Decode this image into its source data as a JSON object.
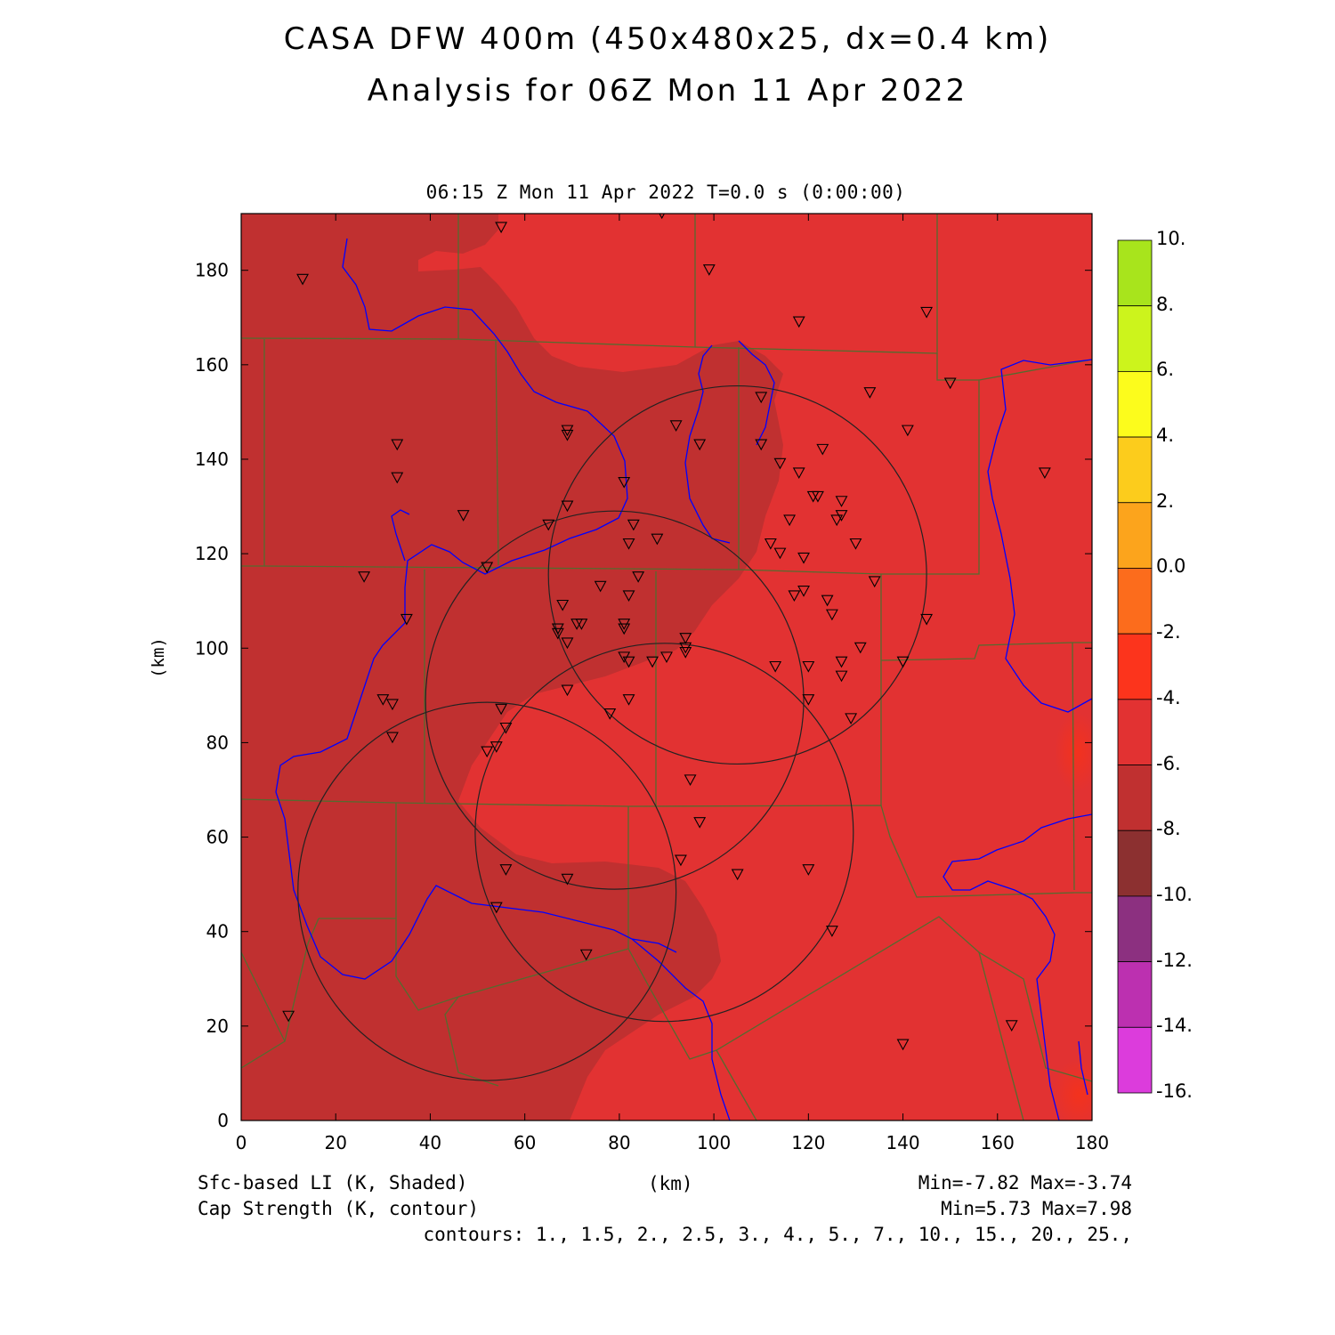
{
  "title": {
    "line1": "CASA DFW 400m (450x480x25, dx=0.4 km)",
    "line2": "Analysis for 06Z Mon 11 Apr 2022"
  },
  "valid_time": "06:15 Z Mon 11 Apr 2022    T=0.0 s (0:00:00)",
  "axes": {
    "x_label": "(km)",
    "y_label": "(km)",
    "x_ticks": [
      "0",
      "20",
      "40",
      "60",
      "80",
      "100",
      "120",
      "140",
      "160",
      "180"
    ],
    "y_ticks": [
      "0",
      "20",
      "40",
      "60",
      "80",
      "100",
      "120",
      "140",
      "160",
      "180"
    ],
    "x_range": [
      0,
      180
    ],
    "y_range": [
      0,
      192
    ]
  },
  "colorbar": {
    "labels": [
      "10.",
      "8.",
      "6.",
      "4.",
      "2.",
      "0.0",
      "-2.",
      "-4.",
      "-6.",
      "-8.",
      "-10.",
      "-12.",
      "-14.",
      "-16."
    ],
    "colors": [
      "#a8e41c",
      "#ccf41c",
      "#fcfc1c",
      "#fccc1c",
      "#fca41c",
      "#fc6c1c",
      "#fc341c",
      "#e23232",
      "#c03030",
      "#8c3030",
      "#8c3080",
      "#bc30b0",
      "#dc3cdc"
    ]
  },
  "footer": {
    "field1": "Sfc-based LI (K, Shaded)",
    "field2": "Cap Strength (K, contour)",
    "xunit": "(km)",
    "minmax1": "Min=-7.82 Max=-3.74",
    "minmax2": "Min=5.73 Max=7.98",
    "contours": "contours: 1., 1.5, 2., 2.5, 3., 4., 5., 7., 10., 15., 20., 25.,"
  },
  "map_colors": {
    "background": "#e23232",
    "darker_region": "#c03030",
    "hotspot": "#f4321c",
    "county_lines": "#556b2f",
    "rivers": "#0000ff",
    "radar_rings": "#222222"
  },
  "radar_rings_km": [
    {
      "x": 52,
      "y": 48.5,
      "r": 40
    },
    {
      "x": 79,
      "y": 89,
      "r": 40
    },
    {
      "x": 89.5,
      "y": 61,
      "r": 40
    },
    {
      "x": 105,
      "y": 115.5,
      "r": 40
    }
  ],
  "stations_km": [
    [
      13,
      178
    ],
    [
      55,
      189
    ],
    [
      89,
      192
    ],
    [
      99,
      180
    ],
    [
      118,
      169
    ],
    [
      145,
      171
    ],
    [
      150,
      156
    ],
    [
      133,
      154
    ],
    [
      141,
      146
    ],
    [
      170,
      137
    ],
    [
      33,
      143
    ],
    [
      33,
      136
    ],
    [
      47,
      128
    ],
    [
      26,
      115
    ],
    [
      35,
      106
    ],
    [
      30,
      89
    ],
    [
      32,
      88
    ],
    [
      32,
      81
    ],
    [
      52,
      117
    ],
    [
      69,
      146
    ],
    [
      69,
      145
    ],
    [
      81,
      135
    ],
    [
      69,
      130
    ],
    [
      65,
      126
    ],
    [
      83,
      126
    ],
    [
      82,
      122
    ],
    [
      88,
      123
    ],
    [
      92,
      147
    ],
    [
      97,
      143
    ],
    [
      110,
      153
    ],
    [
      110,
      143
    ],
    [
      114,
      139
    ],
    [
      118,
      137
    ],
    [
      121,
      132
    ],
    [
      122,
      132
    ],
    [
      127,
      131
    ],
    [
      127,
      128
    ],
    [
      126,
      127
    ],
    [
      123,
      142
    ],
    [
      116,
      127
    ],
    [
      112,
      122
    ],
    [
      114,
      120
    ],
    [
      119,
      119
    ],
    [
      130,
      122
    ],
    [
      134,
      114
    ],
    [
      145,
      106
    ],
    [
      140,
      97
    ],
    [
      131,
      100
    ],
    [
      127,
      97
    ],
    [
      127,
      94
    ],
    [
      129,
      85
    ],
    [
      124,
      110
    ],
    [
      125,
      107
    ],
    [
      119,
      112
    ],
    [
      117,
      111
    ],
    [
      113,
      96
    ],
    [
      120,
      96
    ],
    [
      120,
      89
    ],
    [
      68,
      109
    ],
    [
      67,
      104
    ],
    [
      67,
      103
    ],
    [
      71,
      105
    ],
    [
      72,
      105
    ],
    [
      69,
      101
    ],
    [
      76,
      113
    ],
    [
      82,
      111
    ],
    [
      84,
      115
    ],
    [
      81,
      105
    ],
    [
      81,
      104
    ],
    [
      81,
      98
    ],
    [
      82,
      97
    ],
    [
      87,
      97
    ],
    [
      90,
      98
    ],
    [
      94,
      102
    ],
    [
      94,
      100
    ],
    [
      94,
      99
    ],
    [
      82,
      89
    ],
    [
      78,
      86
    ],
    [
      69,
      91
    ],
    [
      55,
      87
    ],
    [
      56,
      83
    ],
    [
      54,
      79
    ],
    [
      52,
      78
    ],
    [
      95,
      72
    ],
    [
      97,
      63
    ],
    [
      93,
      55
    ],
    [
      105,
      52
    ],
    [
      120,
      53
    ],
    [
      125,
      40
    ],
    [
      56,
      53
    ],
    [
      69,
      51
    ],
    [
      54,
      45
    ],
    [
      73,
      35
    ],
    [
      10,
      22
    ],
    [
      140,
      16
    ],
    [
      163,
      20
    ]
  ]
}
